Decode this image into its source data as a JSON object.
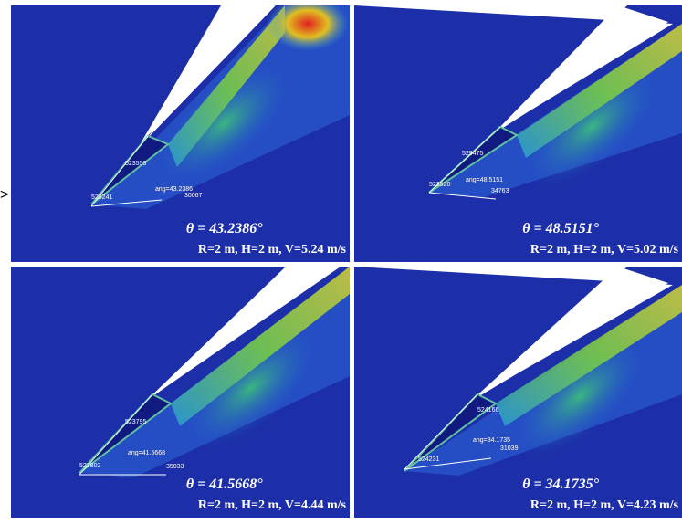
{
  "marker": ">",
  "panels": [
    {
      "angle": "θ = 43.2386°",
      "params": "R=2 m, H=2 m, V=5.24  m/s",
      "nodes": [
        "523553",
        "523241",
        "ang=43.2386",
        "30067"
      ]
    },
    {
      "angle": "θ = 48.5151°",
      "params": "R=2 m, H=2 m, V=5.02  m/s",
      "nodes": [
        "529475",
        "523520",
        "ang=48.5151",
        "34763"
      ]
    },
    {
      "angle": "θ = 41.5668°",
      "params": "R=2 m, H=2 m, V=4.44  m/s",
      "nodes": [
        "523795",
        "523802",
        "ang=41.5668",
        "35033"
      ]
    },
    {
      "angle": "θ = 34.1735°",
      "params": "R=2 m, H=2 m, V=4.23  m/s",
      "nodes": [
        "524166",
        "524231",
        "ang=34.1735",
        "31039"
      ]
    }
  ]
}
